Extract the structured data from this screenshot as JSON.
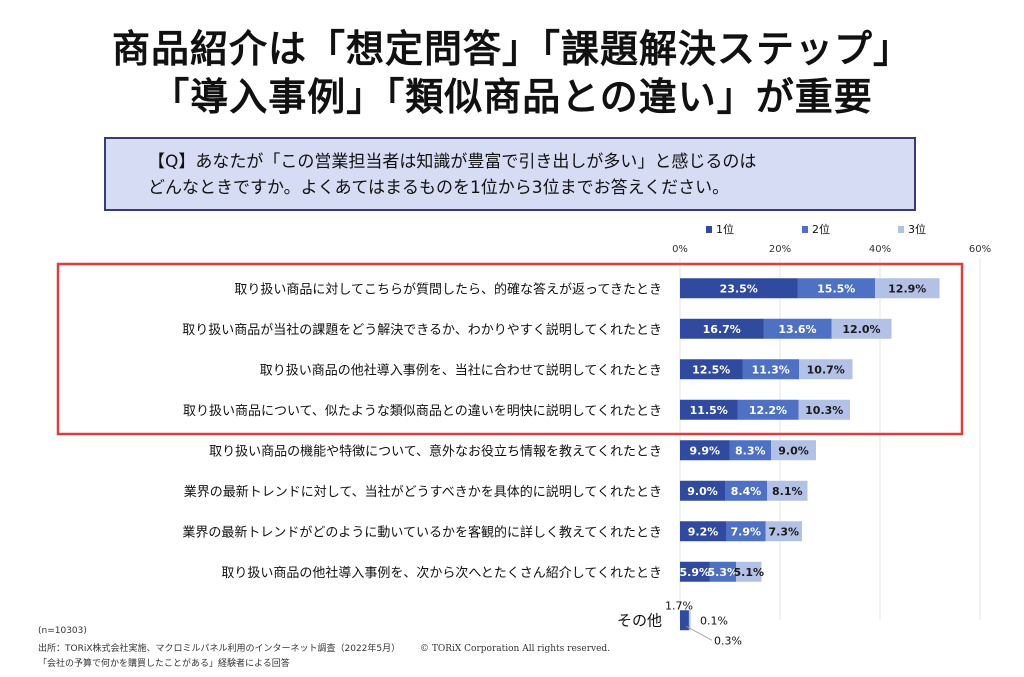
{
  "header": {
    "line1": "商品紹介は「想定問答」「課題解決ステップ」",
    "line2": "「導入事例」「類似商品との違い」が重要"
  },
  "question": {
    "line1": "【Q】あなたが「この営業担当者は知識が豊富で引き出しが多い」と感じるのは",
    "line2": "どんなときですか。よくあてはまるものを1位から3位までお答えください。"
  },
  "footer": {
    "n": "(n=10303)",
    "source": "出所：TORiX株式会社実施、マクロミルパネル利用のインターネット調査（2022年5月）",
    "note": "「会社の予算で何かを購買したことがある」経験者による回答",
    "copyright": "© TORiX Corporation All rights reserved."
  },
  "chart_data": {
    "type": "bar",
    "orientation": "horizontal",
    "stacked": true,
    "xlim": [
      0,
      60
    ],
    "x_ticks": [
      "0%",
      "20%",
      "40%",
      "60%"
    ],
    "grid": true,
    "legend_position": "top",
    "highlight_rows": [
      0,
      1,
      2,
      3
    ],
    "highlight_color": "#e23b3b",
    "categories": [
      "取り扱い商品に対してこちらが質問したら、的確な答えが返ってきたとき",
      "取り扱い商品が当社の課題をどう解決できるか、わかりやすく説明してくれたとき",
      "取り扱い商品の他社導入事例を、当社に合わせて説明してくれたとき",
      "取り扱い商品について、似たような類似商品との違いを明快に説明してくれたとき",
      "取り扱い商品の機能や特徴について、意外なお役立ち情報を教えてくれたとき",
      "業界の最新トレンドに対して、当社がどうすべきかを具体的に説明してくれたとき",
      "業界の最新トレンドがどのように動いているかを客観的に詳しく教えてくれたとき",
      "取り扱い商品の他社導入事例を、次から次へとたくさん紹介してくれたとき",
      "その他"
    ],
    "series": [
      {
        "name": "1位",
        "color": "#2f4a9e",
        "values": [
          23.5,
          16.7,
          12.5,
          11.5,
          9.9,
          9.0,
          9.2,
          5.9,
          1.7
        ],
        "labels": [
          "23.5%",
          "16.7%",
          "12.5%",
          "11.5%",
          "9.9%",
          "9.0%",
          "9.2%",
          "5.9%",
          "1.7%"
        ]
      },
      {
        "name": "2位",
        "color": "#4f71c4",
        "values": [
          15.5,
          13.6,
          11.3,
          12.2,
          8.3,
          8.4,
          7.9,
          5.3,
          0.1
        ],
        "labels": [
          "15.5%",
          "13.6%",
          "11.3%",
          "12.2%",
          "8.3%",
          "8.4%",
          "7.9%",
          "5.3%",
          "0.1%"
        ]
      },
      {
        "name": "3位",
        "color": "#b4c1e6",
        "values": [
          12.9,
          12.0,
          10.7,
          10.3,
          9.0,
          8.1,
          7.3,
          5.1,
          0.3
        ],
        "labels": [
          "12.9%",
          "12.0%",
          "10.7%",
          "10.3%",
          "9.0%",
          "8.1%",
          "7.3%",
          "5.1%",
          "0.3%"
        ]
      }
    ]
  }
}
